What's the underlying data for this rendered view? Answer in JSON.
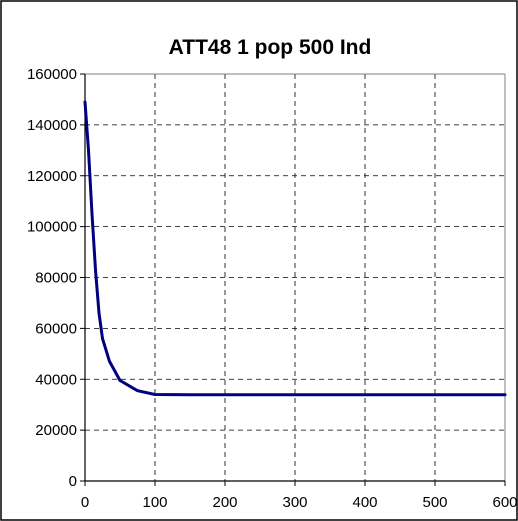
{
  "chart_data": {
    "type": "line",
    "title": "ATT48 1 pop 500 Ind",
    "xlabel": "",
    "ylabel": "",
    "xlim": [
      0,
      600
    ],
    "ylim": [
      0,
      160000
    ],
    "x_ticks": [
      "0",
      "100",
      "200",
      "300",
      "400",
      "500",
      "600"
    ],
    "y_ticks": [
      "0",
      "20000",
      "40000",
      "60000",
      "80000",
      "100000",
      "120000",
      "140000",
      "160000"
    ],
    "grid": true,
    "legend": "none",
    "colors": {
      "line": "#000080",
      "grid": "#000000",
      "axis": "#808080",
      "frame": "#000000"
    },
    "series": [
      {
        "x": [
          0,
          5,
          10,
          15,
          20,
          25,
          35,
          50,
          75,
          100,
          150,
          200,
          300,
          400,
          500,
          600
        ],
        "y": [
          149000,
          130000,
          105000,
          83000,
          66000,
          56000,
          47000,
          39500,
          35500,
          34000,
          33900,
          33900,
          33900,
          33900,
          33900,
          33900
        ]
      }
    ]
  }
}
